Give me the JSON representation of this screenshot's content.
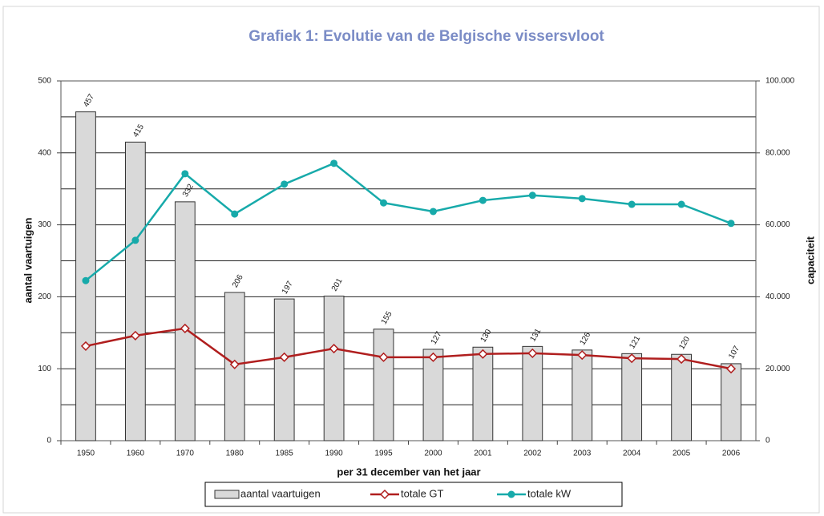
{
  "chart_data": {
    "type": "bar",
    "title": "Grafiek 1: Evolutie van de Belgische vissersvloot",
    "x_label": "per 31 december van het jaar",
    "y_label": "aantal vaartuigen",
    "y2_label": "capaciteit",
    "categories": [
      "1950",
      "1960",
      "1970",
      "1980",
      "1985",
      "1990",
      "1995",
      "2000",
      "2001",
      "2002",
      "2003",
      "2004",
      "2005",
      "2006"
    ],
    "series": [
      {
        "name": "aantal vaartuigen",
        "type": "bar",
        "color": "#d9d9d9",
        "show_values": true,
        "values": [
          457,
          415,
          332,
          206,
          197,
          201,
          155,
          127,
          130,
          131,
          126,
          121,
          120,
          107
        ]
      },
      {
        "name": "totale GT",
        "type": "line",
        "axis": "y2",
        "marker": "diamond",
        "color": "#b01e1e",
        "values": [
          26300,
          29200,
          31200,
          21200,
          23200,
          25600,
          23200,
          23200,
          24100,
          24300,
          23800,
          22900,
          22700,
          20000
        ]
      },
      {
        "name": "totale kW",
        "type": "line",
        "axis": "y2",
        "marker": "circle",
        "color": "#17aaaa",
        "values": [
          44500,
          55700,
          74200,
          63000,
          71300,
          77100,
          66100,
          63700,
          66800,
          68200,
          67300,
          65700,
          65700,
          60400
        ]
      }
    ],
    "ylim": [
      0,
      500
    ],
    "yticks": [
      0,
      100,
      200,
      300,
      400,
      500
    ],
    "yminor_grid": [
      50,
      150,
      250,
      350,
      450
    ],
    "y2lim": [
      0,
      100000
    ],
    "y2ticks": [
      0,
      {
        "value": 20000,
        "label": "20.000"
      },
      {
        "value": 40000,
        "label": "40.000"
      },
      {
        "value": 60000,
        "label": "60.000"
      },
      {
        "value": 80000,
        "label": "80.000"
      },
      {
        "value": 100000,
        "label": "100.000"
      }
    ],
    "grid": true,
    "legend": "bottom"
  }
}
